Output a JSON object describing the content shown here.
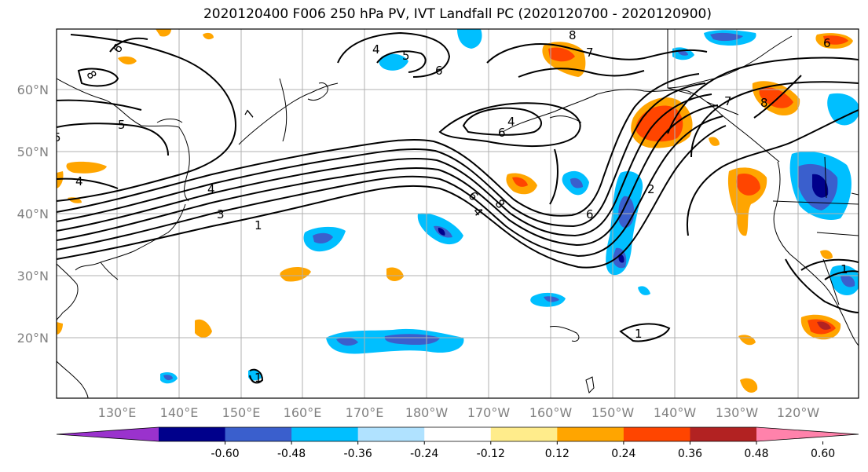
{
  "title": "2020120400 F006 250 hPa PV, IVT Landfall PC (2020120700 - 2020120900)",
  "lat_labels": [
    "60°N",
    "50°N",
    "40°N",
    "30°N",
    "20°N"
  ],
  "lon_labels": [
    "130°E",
    "140°E",
    "150°E",
    "160°E",
    "170°E",
    "180°W",
    "170°W",
    "160°W",
    "150°W",
    "140°W",
    "130°W",
    "120°W"
  ],
  "colorbar": {
    "colors": [
      "#9a32cd",
      "#00008b",
      "#3a5fcd",
      "#00bfff",
      "#b0e2ff",
      "#ffffff",
      "#ffec8b",
      "#ffa500",
      "#ff4500",
      "#b22222",
      "#ff82ab"
    ],
    "ticks": [
      "-0.60",
      "-0.48",
      "-0.36",
      "-0.24",
      "-0.12",
      "0.12",
      "0.24",
      "0.36",
      "0.48",
      "0.60"
    ]
  },
  "contour_labels": [
    "6",
    "8",
    "4",
    "5",
    "6",
    "8",
    "7",
    "6",
    "7",
    "8",
    "5",
    "7",
    "4",
    "6",
    "5",
    "4",
    "4",
    "3",
    "1",
    "6",
    "8",
    "4",
    "6",
    "2",
    "1",
    "1",
    "1"
  ]
}
